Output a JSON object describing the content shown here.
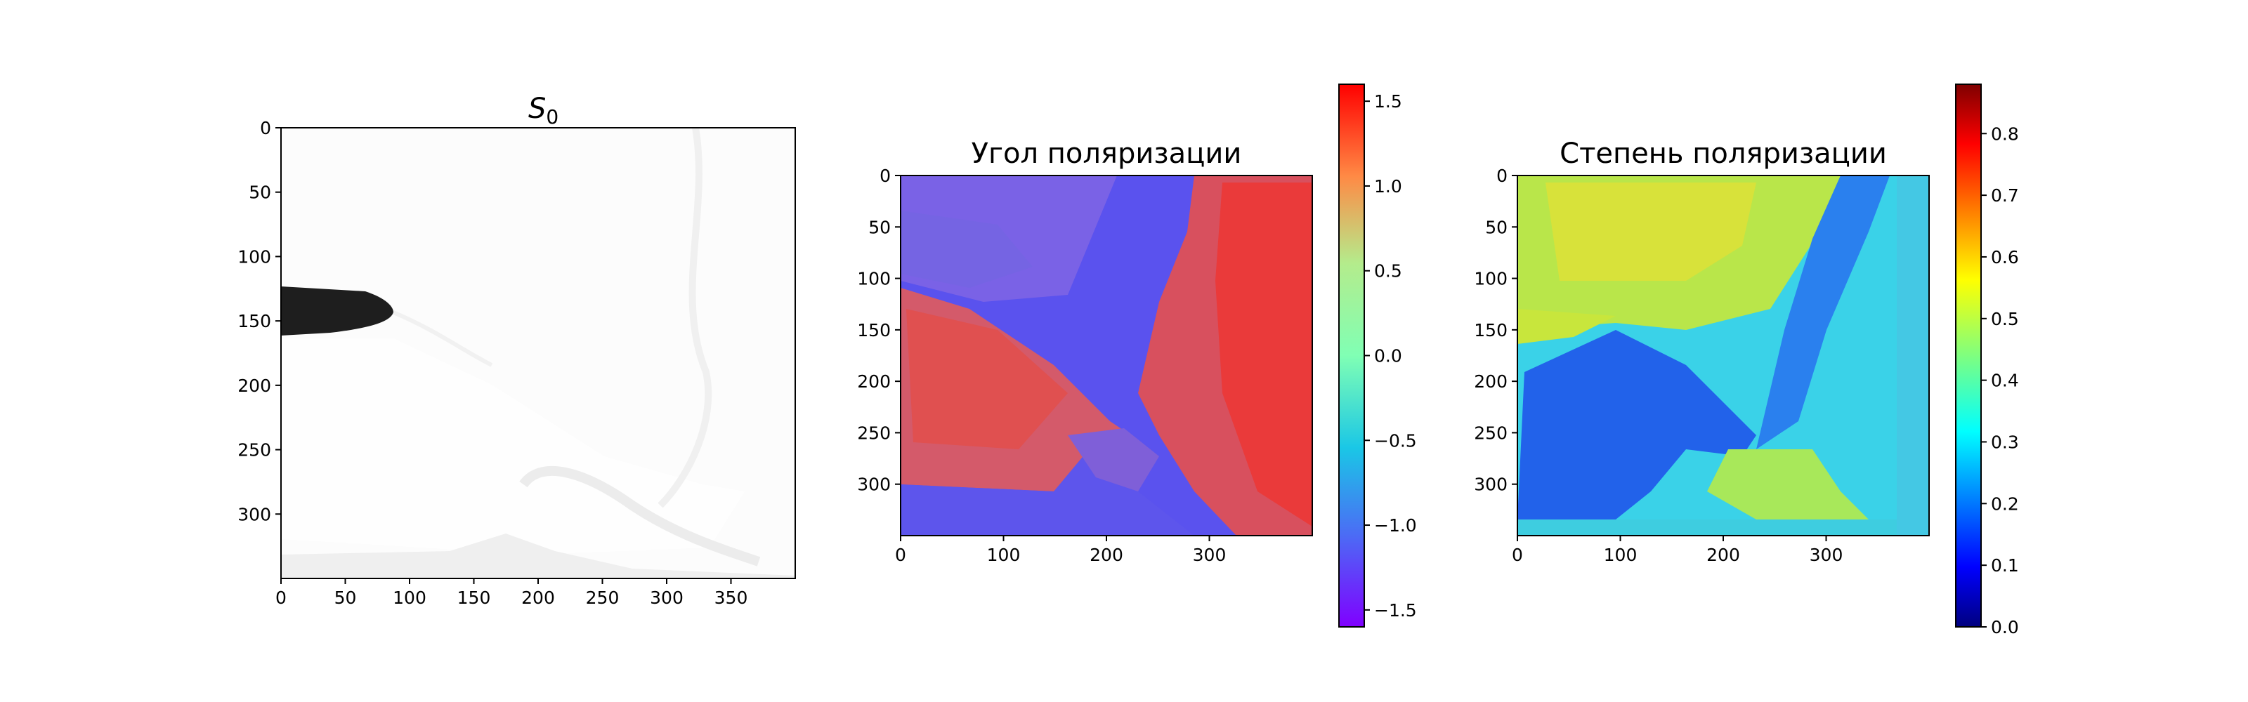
{
  "chart_data": [
    {
      "type": "heatmap",
      "title": "S",
      "title_subscript": "0",
      "colormap": "gray",
      "x_ticks": [
        "0",
        "50",
        "100",
        "150",
        "200",
        "250",
        "300",
        "350"
      ],
      "y_ticks": [
        "0",
        "50",
        "100",
        "150",
        "200",
        "250",
        "300"
      ],
      "xlim": [
        0,
        400
      ],
      "ylim": [
        0,
        350
      ],
      "y_inverted": true,
      "colorbar": false
    },
    {
      "type": "heatmap",
      "title": "Угол поляризации",
      "colormap": "rainbow",
      "x_ticks": [
        "0",
        "100",
        "200",
        "300"
      ],
      "y_ticks": [
        "0",
        "50",
        "100",
        "150",
        "200",
        "250",
        "300"
      ],
      "xlim": [
        0,
        400
      ],
      "ylim": [
        0,
        350
      ],
      "y_inverted": true,
      "colorbar": true,
      "colorbar_range": [
        -1.6,
        1.6
      ],
      "colorbar_ticks": [
        "1.5",
        "1.0",
        "0.5",
        "0.0",
        "−0.5",
        "−1.0",
        "−1.5"
      ]
    },
    {
      "type": "heatmap",
      "title": "Степень поляризации",
      "colormap": "jet",
      "x_ticks": [
        "0",
        "100",
        "200",
        "300"
      ],
      "y_ticks": [
        "0",
        "50",
        "100",
        "150",
        "200",
        "250",
        "300"
      ],
      "xlim": [
        0,
        400
      ],
      "ylim": [
        0,
        350
      ],
      "y_inverted": true,
      "colorbar": true,
      "colorbar_range": [
        0.0,
        0.88
      ],
      "colorbar_ticks": [
        "0.8",
        "0.7",
        "0.6",
        "0.5",
        "0.4",
        "0.3",
        "0.2",
        "0.1",
        "0.0"
      ]
    }
  ]
}
